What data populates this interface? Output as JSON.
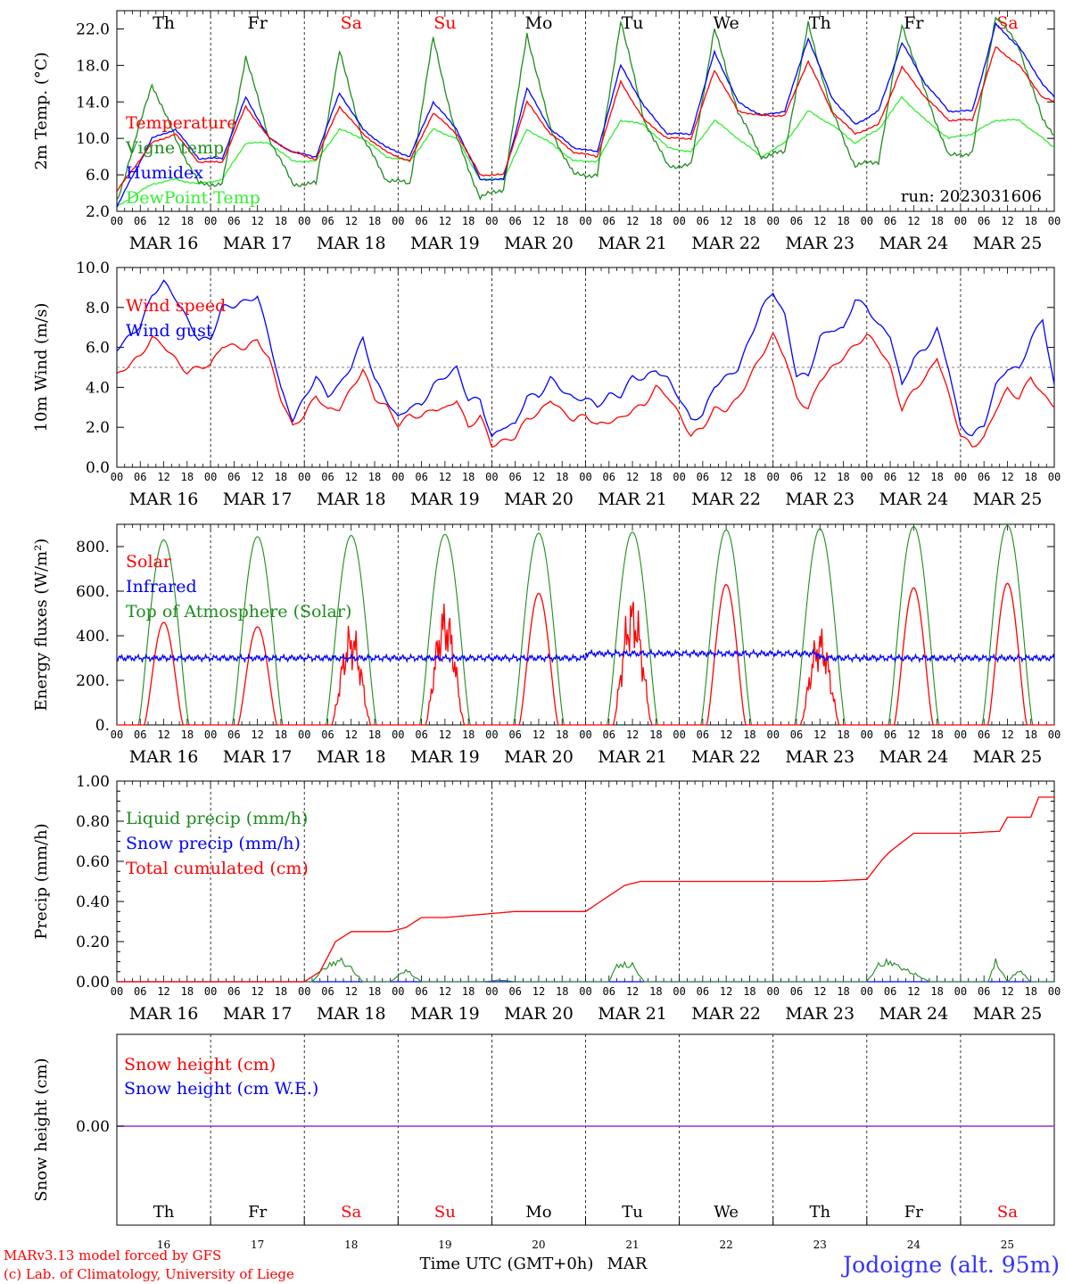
{
  "colors": {
    "red": "#ff0000",
    "dark_green": "#1e8c1e",
    "blue": "#0000ff",
    "light_green": "#33ee33",
    "black": "#000000",
    "purple": "#9933cc"
  },
  "x_axis": {
    "hour_ticks": [
      "00",
      "06",
      "12",
      "18"
    ],
    "final_tick": "00",
    "date_labels": [
      "MAR 16",
      "MAR 17",
      "MAR 18",
      "MAR 19",
      "MAR 20",
      "MAR 21",
      "MAR 22",
      "MAR 23",
      "MAR 24",
      "MAR 25"
    ],
    "weekdays": [
      {
        "label": "Th",
        "color": "#000000"
      },
      {
        "label": "Fr",
        "color": "#000000"
      },
      {
        "label": "Sa",
        "color": "#ff0000"
      },
      {
        "label": "Su",
        "color": "#ff0000"
      },
      {
        "label": "Mo",
        "color": "#000000"
      },
      {
        "label": "Tu",
        "color": "#000000"
      },
      {
        "label": "We",
        "color": "#000000"
      },
      {
        "label": "Th",
        "color": "#000000"
      },
      {
        "label": "Fr",
        "color": "#000000"
      },
      {
        "label": "Sa",
        "color": "#ff0000"
      }
    ],
    "day_numbers": [
      "16",
      "17",
      "18",
      "19",
      "20",
      "21",
      "22",
      "23",
      "24",
      "25"
    ],
    "title": "Time UTC (GMT+0h)",
    "month": "MAR"
  },
  "footer": {
    "credit_line1": "MARv3.13 model forced by GFS",
    "credit_line2": "(c) Lab. of Climatology, University of Liege",
    "station": "Jodoigne (alt. 95m)"
  },
  "chart_data": [
    {
      "type": "line",
      "ylabel": "2m Temp. (°C)",
      "ylim": [
        2.0,
        24.0
      ],
      "yticks": [
        "2.0",
        "6.0",
        "10.0",
        "14.0",
        "18.0",
        "22.0"
      ],
      "annotation": "run: 2023031606",
      "x_hours_from_mar16_00": [
        0,
        9,
        15,
        21,
        27,
        33,
        39,
        45,
        51,
        57,
        63,
        69,
        75,
        81,
        87,
        93,
        99,
        105,
        111,
        117,
        123,
        129,
        135,
        141,
        147,
        153,
        159,
        165,
        171,
        177,
        183,
        189,
        195,
        201,
        207,
        213,
        219,
        225,
        231,
        237,
        240
      ],
      "series": [
        {
          "name": "Temperature",
          "color": "#ff0000",
          "values": [
            4.2,
            9.5,
            10.5,
            7.4,
            7.4,
            13.5,
            10.0,
            8.5,
            7.7,
            13.5,
            10.5,
            8.5,
            7.5,
            12.8,
            10.5,
            6.0,
            6.0,
            14.0,
            10.5,
            8.5,
            8.0,
            16.2,
            12.0,
            10.0,
            10.0,
            17.5,
            13.0,
            12.5,
            12.5,
            18.5,
            13.0,
            10.5,
            11.5,
            17.8,
            14.5,
            12.0,
            12.0,
            20.0,
            18.0,
            14.5,
            14.0
          ]
        },
        {
          "name": "Vigne temp",
          "color": "#1e8c1e",
          "values": [
            3.0,
            16.0,
            10.0,
            5.0,
            5.0,
            19.0,
            10.0,
            5.0,
            5.0,
            19.5,
            10.0,
            5.5,
            5.0,
            21.0,
            10.0,
            3.5,
            4.5,
            21.5,
            11.0,
            6.0,
            6.0,
            23.0,
            12.0,
            7.0,
            7.0,
            22.0,
            13.0,
            8.0,
            8.5,
            22.5,
            13.0,
            7.0,
            7.5,
            22.5,
            15.0,
            8.0,
            8.5,
            23.5,
            20.0,
            12.0,
            10.5
          ]
        },
        {
          "name": "Humidex",
          "color": "#0000ff",
          "values": [
            2.5,
            10.0,
            11.0,
            7.8,
            7.8,
            14.5,
            10.0,
            8.5,
            8.0,
            15.0,
            11.0,
            9.0,
            8.0,
            14.0,
            11.0,
            5.5,
            5.5,
            15.5,
            11.0,
            9.0,
            8.5,
            18.0,
            13.5,
            10.5,
            10.5,
            19.5,
            14.0,
            12.5,
            13.0,
            21.0,
            14.5,
            11.5,
            13.0,
            20.5,
            16.0,
            13.0,
            13.0,
            22.5,
            20.0,
            16.0,
            14.5
          ]
        },
        {
          "name": "DewPoint Temp",
          "color": "#33ee33",
          "values": [
            2.5,
            5.0,
            5.5,
            5.0,
            5.5,
            9.5,
            9.5,
            7.5,
            7.5,
            11.0,
            10.0,
            8.0,
            7.5,
            11.0,
            10.0,
            5.5,
            5.5,
            11.0,
            9.5,
            7.5,
            7.5,
            12.0,
            11.5,
            9.0,
            8.5,
            12.0,
            10.0,
            8.0,
            9.5,
            13.0,
            11.5,
            9.5,
            11.0,
            14.5,
            12.0,
            10.0,
            10.5,
            12.0,
            12.0,
            10.0,
            9.0
          ]
        }
      ]
    },
    {
      "type": "line",
      "ylabel": "10m Wind (m/s)",
      "ylim": [
        0.0,
        10.0
      ],
      "yticks": [
        "0.0",
        "2.0",
        "4.0",
        "6.0",
        "8.0",
        "10.0"
      ],
      "reference_line": 5.0,
      "x_hours_from_mar16_00": [
        0,
        6,
        9,
        12,
        15,
        18,
        21,
        24,
        27,
        30,
        33,
        36,
        39,
        42,
        45,
        48,
        51,
        54,
        57,
        60,
        63,
        66,
        69,
        72,
        75,
        78,
        81,
        84,
        87,
        90,
        93,
        96,
        99,
        102,
        105,
        108,
        111,
        114,
        117,
        120,
        123,
        126,
        129,
        132,
        135,
        138,
        141,
        144,
        147,
        150,
        153,
        156,
        159,
        162,
        165,
        168,
        171,
        174,
        177,
        180,
        183,
        186,
        189,
        192,
        195,
        198,
        201,
        204,
        207,
        210,
        213,
        216,
        219,
        222,
        225,
        228,
        231,
        234,
        237,
        240
      ],
      "series": [
        {
          "name": "Wind speed",
          "color": "#ff0000",
          "values": [
            4.5,
            5.5,
            6.5,
            6.2,
            5.5,
            4.8,
            5.0,
            5.0,
            6.0,
            6.0,
            6.0,
            6.5,
            5.5,
            3.5,
            2.0,
            2.5,
            3.5,
            2.8,
            3.0,
            4.0,
            5.0,
            3.5,
            3.0,
            2.0,
            2.5,
            2.5,
            3.0,
            3.0,
            3.5,
            2.0,
            2.5,
            1.0,
            1.2,
            1.5,
            2.5,
            2.8,
            3.5,
            2.8,
            2.3,
            2.5,
            2.0,
            2.3,
            2.5,
            3.0,
            3.2,
            4.0,
            3.5,
            2.5,
            1.5,
            2.0,
            3.0,
            3.0,
            3.5,
            4.5,
            5.5,
            6.5,
            5.5,
            3.5,
            3.0,
            4.5,
            5.0,
            5.5,
            6.0,
            6.5,
            6.0,
            5.0,
            3.0,
            4.0,
            4.5,
            5.5,
            3.5,
            1.5,
            1.0,
            1.5,
            3.0,
            4.0,
            3.5,
            4.5,
            3.5,
            3.0
          ]
        },
        {
          "name": "Wind gust",
          "color": "#0000ff",
          "values": [
            6.0,
            7.0,
            8.5,
            9.2,
            8.5,
            7.5,
            6.5,
            6.5,
            8.0,
            8.0,
            8.2,
            8.5,
            6.5,
            4.0,
            2.5,
            3.5,
            4.5,
            3.5,
            4.0,
            5.0,
            6.5,
            4.5,
            3.5,
            2.5,
            3.0,
            3.0,
            4.0,
            4.5,
            5.0,
            3.5,
            3.5,
            1.5,
            2.0,
            2.0,
            3.5,
            3.5,
            4.5,
            4.0,
            3.5,
            3.5,
            3.0,
            3.5,
            3.5,
            4.5,
            4.5,
            5.0,
            4.5,
            3.5,
            2.3,
            2.5,
            4.0,
            4.5,
            5.0,
            6.5,
            8.0,
            8.8,
            7.5,
            4.5,
            4.5,
            6.5,
            7.0,
            7.0,
            8.5,
            8.0,
            7.0,
            6.5,
            4.0,
            5.5,
            6.0,
            7.0,
            5.0,
            2.0,
            1.5,
            2.0,
            4.0,
            5.0,
            5.0,
            6.5,
            7.5,
            4.0
          ]
        }
      ]
    },
    {
      "type": "line",
      "ylabel": "Energy fluxes (W/m²)",
      "ylim": [
        0,
        900
      ],
      "yticks": [
        "0.",
        "200.",
        "400.",
        "600.",
        "800."
      ],
      "series": [
        {
          "name": "Solar",
          "color": "#ff0000",
          "daily_peak_values": [
            460,
            440,
            480,
            580,
            590,
            620,
            630,
            460,
            615,
            635
          ]
        },
        {
          "name": "Infrared",
          "color": "#0000ff",
          "typical_range": [
            280,
            370
          ],
          "typical_value": 300
        },
        {
          "name": "Top of Atmosphere (Solar)",
          "color": "#1e8c1e",
          "daily_peak_values": [
            830,
            845,
            850,
            855,
            860,
            865,
            875,
            880,
            890,
            895
          ]
        }
      ]
    },
    {
      "type": "line",
      "ylabel": "Precip (mm/h)",
      "ylim": [
        0.0,
        1.0
      ],
      "yticks": [
        "0.00",
        "0.20",
        "0.40",
        "0.60",
        "0.80",
        "1.00"
      ],
      "series": [
        {
          "name": "Liquid precip (mm/h)",
          "color": "#1e8c1e",
          "x_hours_from_mar16_00": [
            0,
            50,
            53,
            57,
            60,
            63,
            70,
            74,
            78,
            94,
            98,
            102,
            126,
            128,
            132,
            135,
            192,
            195,
            198,
            201,
            204,
            208,
            223,
            225,
            228,
            231,
            234
          ],
          "values": [
            0,
            0,
            0.08,
            0.13,
            0.08,
            0,
            0,
            0.07,
            0,
            0,
            0.01,
            0,
            0,
            0.1,
            0.1,
            0,
            0,
            0.1,
            0.12,
            0.08,
            0.05,
            0,
            0,
            0.12,
            0,
            0.07,
            0
          ]
        },
        {
          "name": "Snow precip (mm/h)",
          "color": "#0000ff",
          "values": [
            0
          ]
        },
        {
          "name": "Total cumulated (cm)",
          "color": "#ff0000",
          "x_hours_from_mar16_00": [
            0,
            48,
            52,
            56,
            60,
            70,
            72,
            74,
            78,
            84,
            96,
            102,
            120,
            130,
            134,
            144,
            156,
            168,
            180,
            192,
            196,
            198,
            204,
            216,
            226,
            228,
            234,
            236,
            240
          ],
          "values": [
            0,
            0,
            0.05,
            0.2,
            0.25,
            0.25,
            0.26,
            0.27,
            0.32,
            0.32,
            0.34,
            0.35,
            0.35,
            0.48,
            0.5,
            0.5,
            0.5,
            0.5,
            0.5,
            0.51,
            0.61,
            0.65,
            0.74,
            0.74,
            0.75,
            0.82,
            0.82,
            0.92,
            0.92
          ]
        }
      ]
    },
    {
      "type": "line",
      "ylabel": "Snow height (cm)",
      "yticks": [
        "0.00"
      ],
      "series": [
        {
          "name": "Snow height (cm)",
          "color": "#ff0000",
          "values": [
            0
          ]
        },
        {
          "name": "Snow height (cm W.E.)",
          "color": "#0000ff",
          "values": [
            0
          ]
        }
      ]
    }
  ]
}
